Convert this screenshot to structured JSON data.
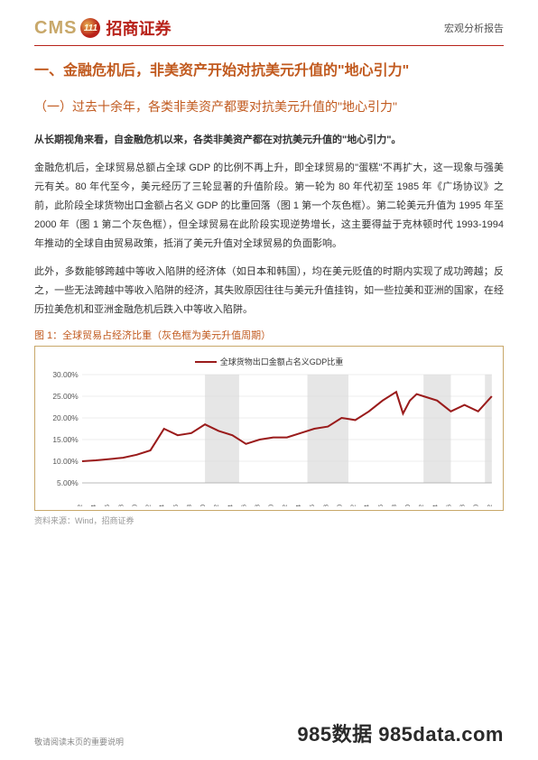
{
  "header": {
    "logo_cms": "CMS",
    "logo_badge": "111",
    "logo_cn": "招商证券",
    "report_type": "宏观分析报告"
  },
  "headings": {
    "h1": "一、金融危机后，非美资产开始对抗美元升值的\"地心引力\"",
    "h2": "（一）过去十余年，各类非美资产都要对抗美元升值的\"地心引力\""
  },
  "paragraphs": {
    "bold": "从长期视角来看，自金融危机以来，各类非美资产都在对抗美元升值的\"地心引力\"。",
    "p1": "金融危机后，全球贸易总额占全球 GDP 的比例不再上升，即全球贸易的\"蛋糕\"不再扩大，这一现象与强美元有关。80 年代至今，美元经历了三轮显著的升值阶段。第一轮为 80 年代初至 1985 年《广场协议》之前，此阶段全球货物出口金额占名义 GDP 的比重回落（图 1 第一个灰色框）。第二轮美元升值为 1995 年至 2000 年（图 1 第二个灰色框），但全球贸易在此阶段实现逆势增长，这主要得益于克林顿时代 1993-1994 年推动的全球自由贸易政策，抵消了美元升值对全球贸易的负面影响。",
    "p2": "此外，多数能够跨越中等收入陷阱的经济体（如日本和韩国），均在美元贬值的时期内实现了成功跨越；反之，一些无法跨越中等收入陷阱的经济，其失败原因往往与美元升值挂钩，如一些拉美和亚洲的国家，在经历拉美危机和亚洲金融危机后跌入中等收入陷阱。"
  },
  "figure": {
    "title": "图 1：全球贸易占经济比重（灰色框为美元升值周期）",
    "legend": "全球货物出口金额占名义GDP比重",
    "source": "资料来源：Wind，招商证券",
    "chart": {
      "type": "line",
      "line_color": "#9a1b1b",
      "line_width": 2,
      "background_color": "#ffffff",
      "grid_color": "#d9d9d9",
      "shade_color": "#e6e6e6",
      "ylim": [
        5,
        30
      ],
      "ytick_step": 5,
      "ytick_format": "percent_2dp",
      "yticks": [
        "5.00%",
        "10.00%",
        "15.00%",
        "20.00%",
        "25.00%",
        "30.00%"
      ],
      "xlim": [
        1962,
        2022
      ],
      "xtick_step": 2,
      "xticks": [
        1962,
        1964,
        1966,
        1968,
        1970,
        1972,
        1974,
        1976,
        1978,
        1980,
        1982,
        1984,
        1986,
        1988,
        1990,
        1992,
        1994,
        1996,
        1998,
        2000,
        2002,
        2004,
        2006,
        2008,
        2010,
        2012,
        2014,
        2016,
        2018,
        2020,
        2022
      ],
      "shaded_ranges": [
        [
          1980,
          1985
        ],
        [
          1995,
          2001
        ],
        [
          2012,
          2016
        ],
        [
          2021,
          2023
        ]
      ],
      "series": [
        {
          "x": 1962,
          "y": 10.0
        },
        {
          "x": 1964,
          "y": 10.2
        },
        {
          "x": 1966,
          "y": 10.5
        },
        {
          "x": 1968,
          "y": 10.8
        },
        {
          "x": 1970,
          "y": 11.5
        },
        {
          "x": 1972,
          "y": 12.5
        },
        {
          "x": 1974,
          "y": 17.5
        },
        {
          "x": 1976,
          "y": 16.0
        },
        {
          "x": 1978,
          "y": 16.5
        },
        {
          "x": 1980,
          "y": 18.5
        },
        {
          "x": 1982,
          "y": 17.0
        },
        {
          "x": 1984,
          "y": 16.0
        },
        {
          "x": 1986,
          "y": 14.0
        },
        {
          "x": 1988,
          "y": 15.0
        },
        {
          "x": 1990,
          "y": 15.5
        },
        {
          "x": 1992,
          "y": 15.5
        },
        {
          "x": 1994,
          "y": 16.5
        },
        {
          "x": 1996,
          "y": 17.5
        },
        {
          "x": 1998,
          "y": 18.0
        },
        {
          "x": 2000,
          "y": 20.0
        },
        {
          "x": 2002,
          "y": 19.5
        },
        {
          "x": 2004,
          "y": 21.5
        },
        {
          "x": 2006,
          "y": 24.0
        },
        {
          "x": 2008,
          "y": 26.0
        },
        {
          "x": 2009,
          "y": 21.0
        },
        {
          "x": 2010,
          "y": 24.0
        },
        {
          "x": 2011,
          "y": 25.5
        },
        {
          "x": 2012,
          "y": 25.0
        },
        {
          "x": 2014,
          "y": 24.0
        },
        {
          "x": 2016,
          "y": 21.5
        },
        {
          "x": 2018,
          "y": 23.0
        },
        {
          "x": 2020,
          "y": 21.5
        },
        {
          "x": 2022,
          "y": 25.0
        }
      ]
    }
  },
  "footer": {
    "note": "敬请阅读末页的重要说明",
    "brand": "985数据 985data.com"
  }
}
